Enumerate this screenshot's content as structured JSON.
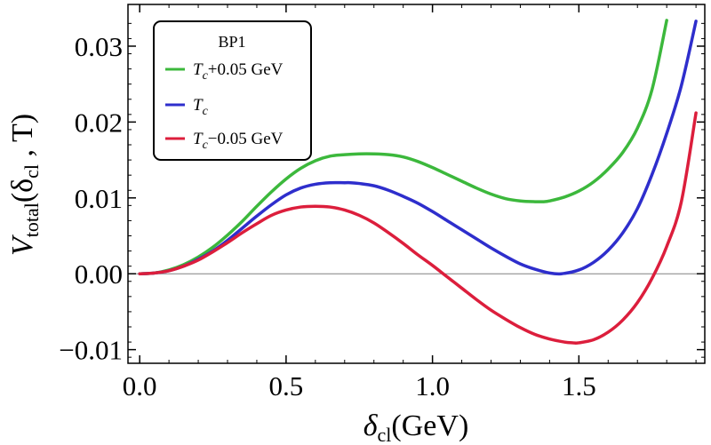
{
  "chart_data": {
    "type": "line",
    "title": "",
    "xlabel": {
      "main": "δ",
      "sub": "cl",
      "rest": "(GeV)"
    },
    "ylabel": {
      "main": "V",
      "sub": "total",
      "rest": "(δ",
      "sub2": "cl",
      "tail": " , T)"
    },
    "xlim": [
      -0.04,
      1.93
    ],
    "ylim": [
      -0.0118,
      0.0355
    ],
    "xticks": [
      {
        "value": 0.0,
        "label": "0.0"
      },
      {
        "value": 0.5,
        "label": "0.5"
      },
      {
        "value": 1.0,
        "label": "1.0"
      },
      {
        "value": 1.5,
        "label": "1.5"
      }
    ],
    "yticks": [
      {
        "value": -0.01,
        "label": "−0.01"
      },
      {
        "value": 0.0,
        "label": "0.00"
      },
      {
        "value": 0.01,
        "label": "0.01"
      },
      {
        "value": 0.02,
        "label": "0.02"
      },
      {
        "value": 0.03,
        "label": "0.03"
      }
    ],
    "reference_line": {
      "y": 0.0,
      "color": "#808080"
    },
    "legend": {
      "title": "BP1",
      "position": "top-left"
    },
    "series": [
      {
        "name": "T_c+0.05 GeV",
        "legend": {
          "main": "T",
          "sub": "c",
          "rest": "+0.05 GeV"
        },
        "color": "#3cb83c",
        "x": [
          0.0,
          0.05,
          0.1,
          0.15,
          0.2,
          0.25,
          0.3,
          0.35,
          0.4,
          0.45,
          0.5,
          0.55,
          0.6,
          0.65,
          0.7,
          0.75,
          0.8,
          0.85,
          0.9,
          0.95,
          1.0,
          1.05,
          1.1,
          1.15,
          1.2,
          1.25,
          1.3,
          1.35,
          1.38,
          1.4,
          1.45,
          1.5,
          1.55,
          1.6,
          1.65,
          1.7,
          1.75,
          1.8
        ],
        "y": [
          0.0,
          0.0001,
          0.0005,
          0.0012,
          0.0022,
          0.0035,
          0.0051,
          0.0069,
          0.0089,
          0.0108,
          0.0125,
          0.0139,
          0.0149,
          0.0155,
          0.0157,
          0.0158,
          0.0158,
          0.0157,
          0.0154,
          0.0148,
          0.014,
          0.0131,
          0.0122,
          0.0113,
          0.0105,
          0.0099,
          0.0096,
          0.0095,
          0.0095,
          0.0096,
          0.0101,
          0.0109,
          0.0121,
          0.0138,
          0.016,
          0.0192,
          0.0243,
          0.0334
        ]
      },
      {
        "name": "T_c",
        "legend": {
          "main": "T",
          "sub": "c",
          "rest": ""
        },
        "color": "#2e2ecc",
        "x": [
          0.0,
          0.05,
          0.1,
          0.15,
          0.2,
          0.25,
          0.3,
          0.35,
          0.4,
          0.45,
          0.5,
          0.55,
          0.6,
          0.65,
          0.7,
          0.72,
          0.75,
          0.8,
          0.85,
          0.9,
          0.95,
          1.0,
          1.05,
          1.1,
          1.15,
          1.2,
          1.25,
          1.3,
          1.35,
          1.4,
          1.44,
          1.5,
          1.55,
          1.6,
          1.65,
          1.7,
          1.75,
          1.8,
          1.85,
          1.9
        ],
        "y": [
          0.0,
          0.0001,
          0.0004,
          0.001,
          0.0019,
          0.003,
          0.0044,
          0.006,
          0.0076,
          0.0091,
          0.0104,
          0.0113,
          0.0118,
          0.012,
          0.012,
          0.012,
          0.0119,
          0.0116,
          0.011,
          0.0102,
          0.0093,
          0.0082,
          0.007,
          0.0058,
          0.0046,
          0.0034,
          0.0023,
          0.0013,
          0.0006,
          0.0001,
          0.0,
          0.0005,
          0.0015,
          0.0031,
          0.0054,
          0.0086,
          0.0131,
          0.0185,
          0.0248,
          0.0333
        ]
      },
      {
        "name": "T_c−0.05 GeV",
        "legend": {
          "main": "T",
          "sub": "c",
          "rest": "−0.05 GeV"
        },
        "color": "#dc1e3c",
        "x": [
          0.0,
          0.05,
          0.1,
          0.15,
          0.2,
          0.25,
          0.3,
          0.35,
          0.4,
          0.45,
          0.5,
          0.55,
          0.6,
          0.65,
          0.7,
          0.75,
          0.8,
          0.85,
          0.9,
          0.95,
          1.0,
          1.05,
          1.1,
          1.15,
          1.2,
          1.25,
          1.3,
          1.35,
          1.4,
          1.45,
          1.48,
          1.5,
          1.55,
          1.6,
          1.65,
          1.7,
          1.75,
          1.8,
          1.85,
          1.9
        ],
        "y": [
          0.0,
          0.0001,
          0.0004,
          0.001,
          0.0018,
          0.0029,
          0.0041,
          0.0054,
          0.0066,
          0.0077,
          0.0084,
          0.0088,
          0.0089,
          0.0088,
          0.0084,
          0.0077,
          0.0067,
          0.0054,
          0.004,
          0.0025,
          0.0011,
          -0.0004,
          -0.0019,
          -0.0034,
          -0.0048,
          -0.006,
          -0.0071,
          -0.008,
          -0.0086,
          -0.009,
          -0.0091,
          -0.0091,
          -0.0087,
          -0.0077,
          -0.0061,
          -0.0038,
          -0.0006,
          0.0036,
          0.0095,
          0.0212
        ]
      }
    ]
  }
}
